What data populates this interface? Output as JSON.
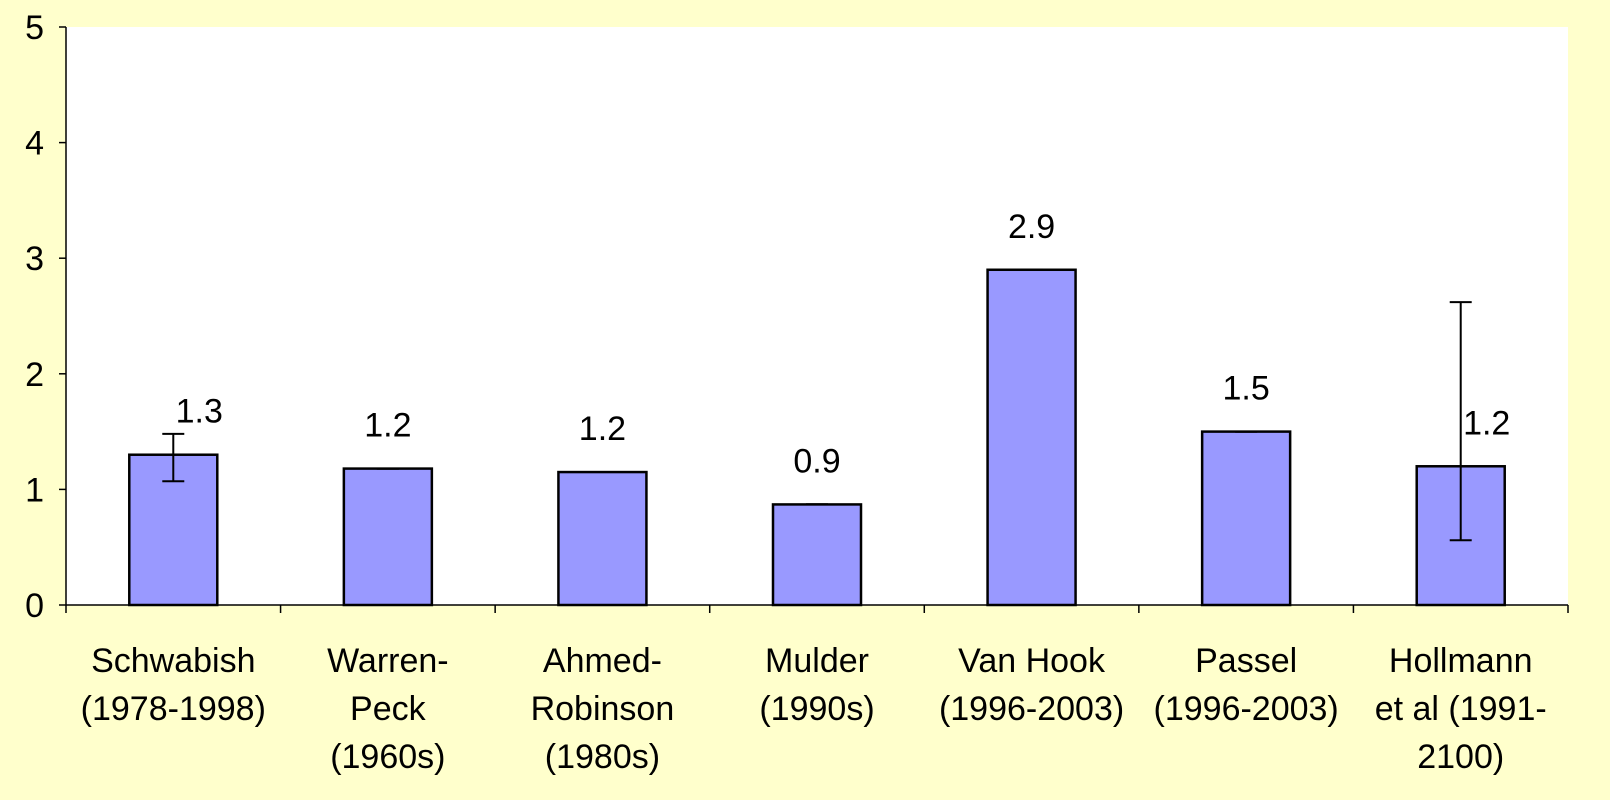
{
  "chart_data": {
    "type": "bar",
    "categories": [
      "Schwabish\n(1978-1998)",
      "Warren-\nPeck\n(1960s)",
      "Ahmed-\nRobinson\n(1980s)",
      "Mulder\n(1990s)",
      "Van Hook\n(1996-2003)",
      "Passel\n(1996-2003)",
      "Hollmann\net al (1991-\n2100)"
    ],
    "values": [
      1.3,
      1.18,
      1.15,
      0.87,
      2.9,
      1.5,
      1.2
    ],
    "value_labels": [
      "1.3",
      "1.2",
      "1.2",
      "0.9",
      "2.9",
      "1.5",
      "1.2"
    ],
    "error_high": [
      0.18,
      0,
      0,
      0,
      0,
      0,
      1.42
    ],
    "error_low": [
      0.23,
      0,
      0,
      0,
      0,
      0,
      0.64
    ],
    "color": "#9999ff",
    "ylim": [
      0,
      5
    ],
    "yticks": [
      0,
      1,
      2,
      3,
      4,
      5
    ]
  }
}
